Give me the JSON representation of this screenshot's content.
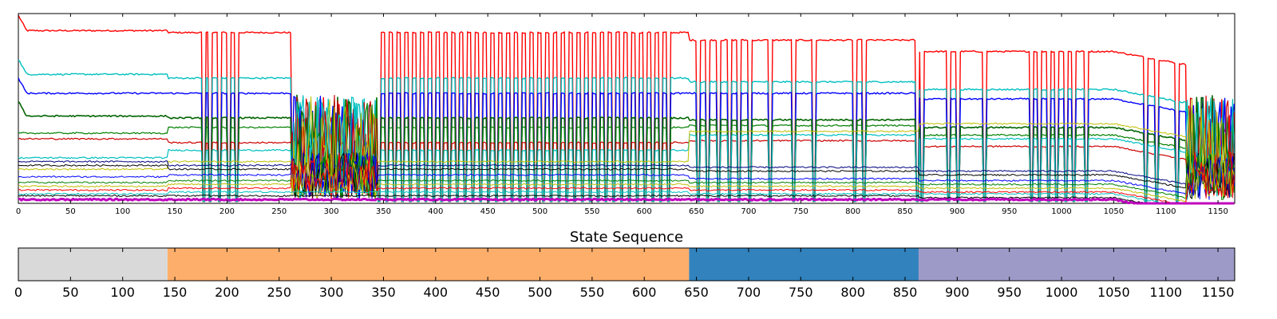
{
  "chart_data": [
    {
      "type": "line",
      "title": "",
      "xlabel": "",
      "ylabel": "",
      "xlim": [
        0,
        1166
      ],
      "ylim": [
        0,
        1.0
      ],
      "xticks": [
        0,
        50,
        100,
        150,
        200,
        250,
        300,
        350,
        400,
        450,
        500,
        550,
        600,
        650,
        700,
        750,
        800,
        850,
        900,
        950,
        1000,
        1050,
        1100,
        1150
      ],
      "grid": false,
      "legend": "none",
      "line_colors": [
        "#ff0000",
        "#00bfbf",
        "#0000ff",
        "#008000",
        "#bfbf00",
        "#bf00bf",
        "#000000"
      ],
      "series_levels": {
        "red_top": {
          "state1": 0.91,
          "state2": 0.9,
          "state3": 0.86,
          "state4": 0.8
        },
        "cyan": {
          "state1": 0.68,
          "state2": 0.66,
          "state3": 0.64,
          "state4": 0.6
        },
        "blue": {
          "state1": 0.58,
          "state2": 0.58,
          "state3": 0.58,
          "state4": 0.55
        },
        "dark_green": {
          "state1": 0.46,
          "state2": 0.45,
          "state3": 0.44,
          "state4": 0.4
        },
        "magenta": {
          "state1": 0.02,
          "state2": 0.02,
          "state3": 0.02,
          "state4": 0.02
        }
      }
    },
    {
      "type": "bar",
      "title": "State Sequence",
      "xlim": [
        0,
        1166
      ],
      "xticks": [
        0,
        50,
        100,
        150,
        200,
        250,
        300,
        350,
        400,
        450,
        500,
        550,
        600,
        650,
        700,
        750,
        800,
        850,
        900,
        950,
        1000,
        1050,
        1100,
        1150
      ],
      "segments": [
        {
          "start": 0,
          "end": 143,
          "color": "#d9d9d9"
        },
        {
          "start": 143,
          "end": 643,
          "color": "#fdae6b"
        },
        {
          "start": 643,
          "end": 863,
          "color": "#3182bd"
        },
        {
          "start": 863,
          "end": 1166,
          "color": "#9e9ac8"
        }
      ]
    }
  ]
}
